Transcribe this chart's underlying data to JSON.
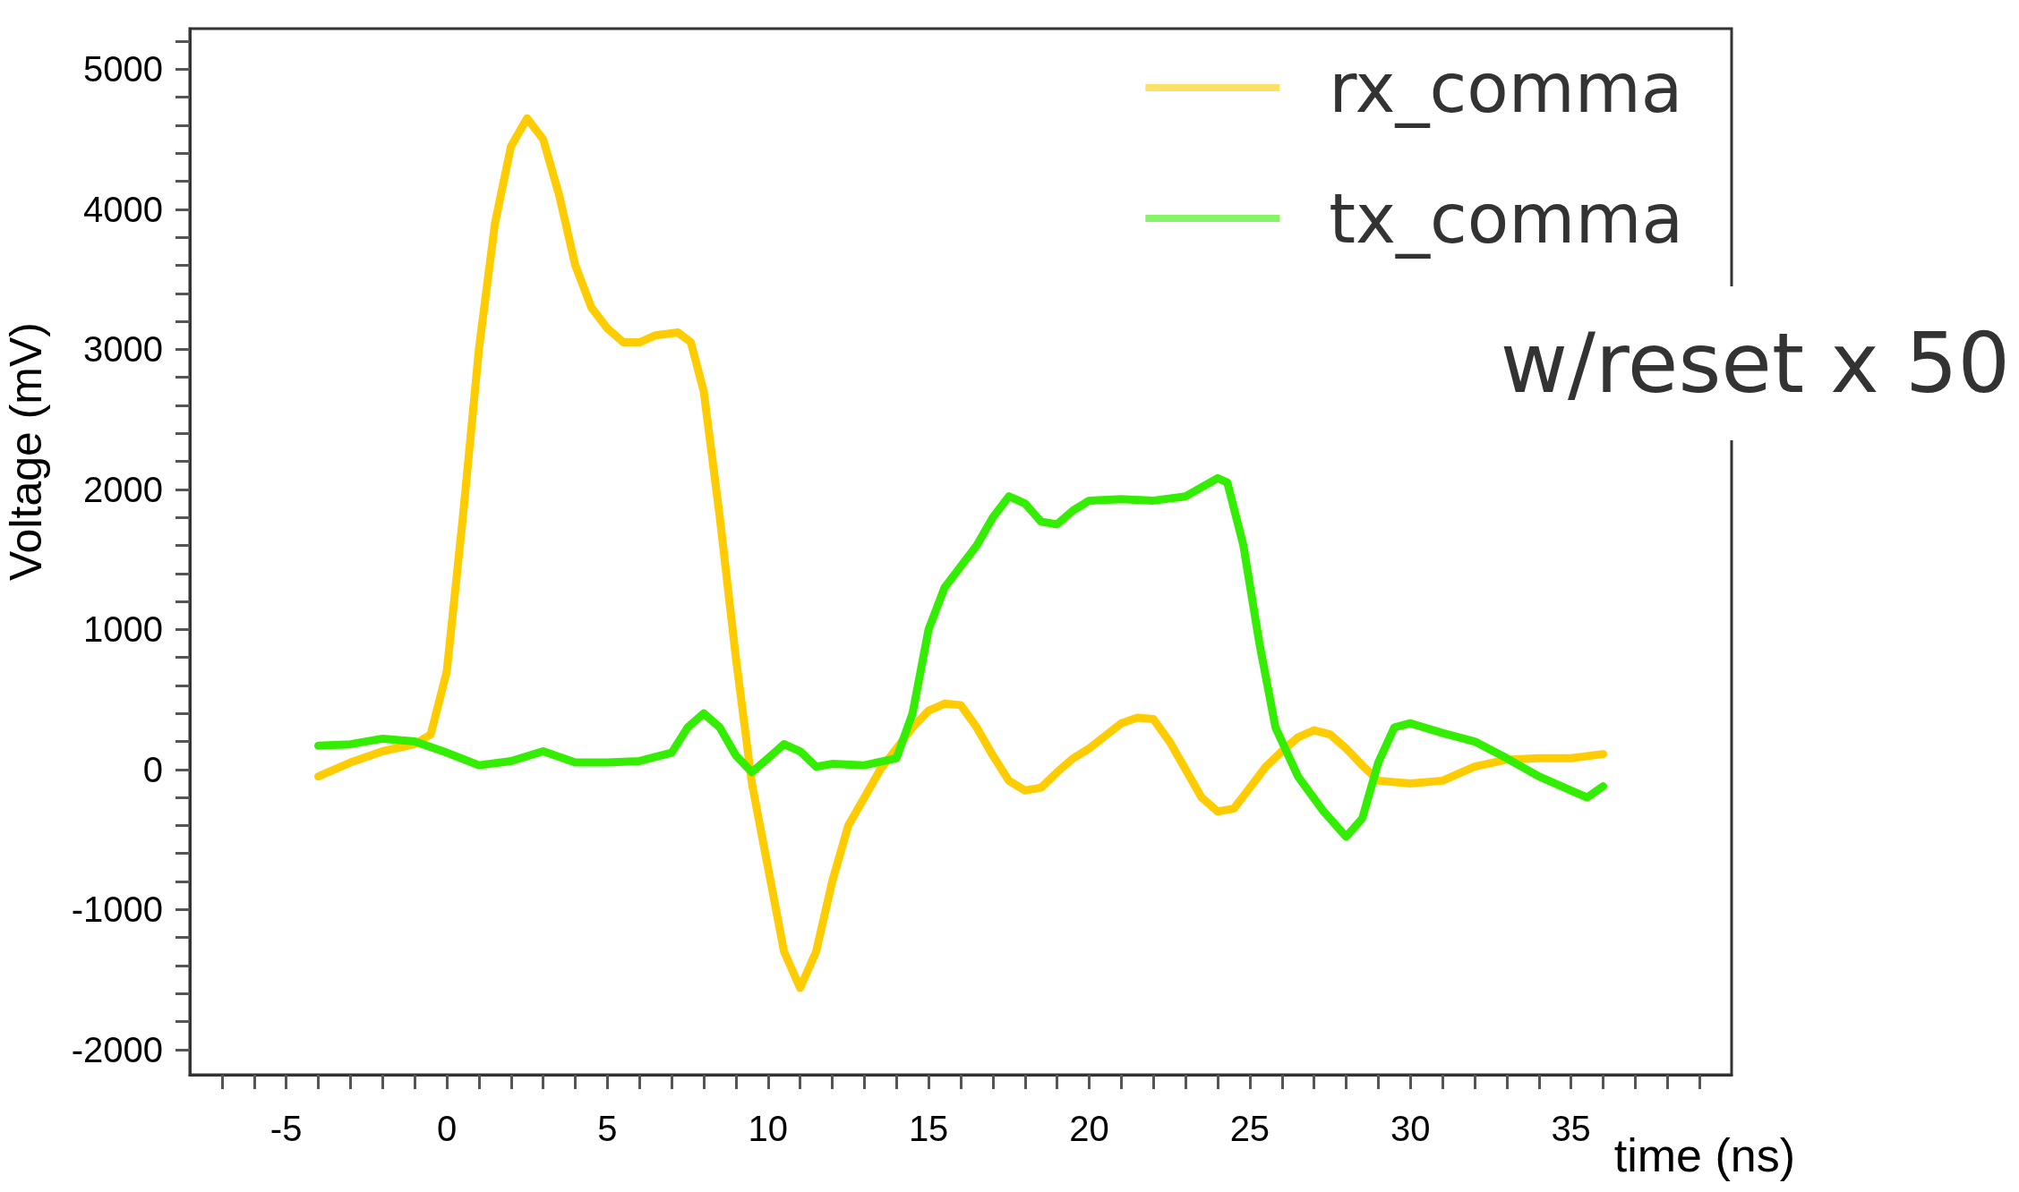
{
  "chart_data": {
    "type": "line",
    "xlabel": "time (ns)",
    "ylabel": "Voltage (mV)",
    "xlim": [
      -8,
      40
    ],
    "ylim": [
      -2180,
      5290
    ],
    "xticks": [
      {
        "value": -7,
        "label": null
      },
      {
        "value": -6,
        "label": null
      },
      -5,
      {
        "value": -4,
        "label": null
      },
      {
        "value": -3,
        "label": null
      },
      {
        "value": -2,
        "label": null
      },
      {
        "value": -1,
        "label": null
      },
      0,
      {
        "value": 1,
        "label": null
      },
      {
        "value": 2,
        "label": null
      },
      {
        "value": 3,
        "label": null
      },
      {
        "value": 4,
        "label": null
      },
      5,
      {
        "value": 6,
        "label": null
      },
      {
        "value": 7,
        "label": null
      },
      {
        "value": 8,
        "label": null
      },
      {
        "value": 9,
        "label": null
      },
      10,
      {
        "value": 11,
        "label": null
      },
      {
        "value": 12,
        "label": null
      },
      {
        "value": 13,
        "label": null
      },
      {
        "value": 14,
        "label": null
      },
      15,
      {
        "value": 16,
        "label": null
      },
      {
        "value": 17,
        "label": null
      },
      {
        "value": 18,
        "label": null
      },
      {
        "value": 19,
        "label": null
      },
      20,
      {
        "value": 21,
        "label": null
      },
      {
        "value": 22,
        "label": null
      },
      {
        "value": 23,
        "label": null
      },
      {
        "value": 24,
        "label": null
      },
      25,
      {
        "value": 26,
        "label": null
      },
      {
        "value": 27,
        "label": null
      },
      {
        "value": 28,
        "label": null
      },
      {
        "value": 29,
        "label": null
      },
      30,
      {
        "value": 31,
        "label": null
      },
      {
        "value": 32,
        "label": null
      },
      {
        "value": 33,
        "label": null
      },
      {
        "value": 34,
        "label": null
      },
      35,
      {
        "value": 36,
        "label": null
      },
      {
        "value": 37,
        "label": null
      },
      {
        "value": 38,
        "label": null
      },
      {
        "value": 39,
        "label": null
      }
    ],
    "yticks": [
      -2000,
      {
        "value": -1800,
        "label": null
      },
      {
        "value": -1600,
        "label": null
      },
      {
        "value": -1400,
        "label": null
      },
      {
        "value": -1200,
        "label": null
      },
      -1000,
      {
        "value": -800,
        "label": null
      },
      {
        "value": -600,
        "label": null
      },
      {
        "value": -400,
        "label": null
      },
      {
        "value": -200,
        "label": null
      },
      0,
      {
        "value": 200,
        "label": null
      },
      {
        "value": 400,
        "label": null
      },
      {
        "value": 600,
        "label": null
      },
      {
        "value": 800,
        "label": null
      },
      1000,
      {
        "value": 1200,
        "label": null
      },
      {
        "value": 1400,
        "label": null
      },
      {
        "value": 1600,
        "label": null
      },
      {
        "value": 1800,
        "label": null
      },
      2000,
      {
        "value": 2200,
        "label": null
      },
      {
        "value": 2400,
        "label": null
      },
      {
        "value": 2600,
        "label": null
      },
      {
        "value": 2800,
        "label": null
      },
      3000,
      {
        "value": 3200,
        "label": null
      },
      {
        "value": 3400,
        "label": null
      },
      {
        "value": 3600,
        "label": null
      },
      {
        "value": 3800,
        "label": null
      },
      4000,
      {
        "value": 4200,
        "label": null
      },
      {
        "value": 4400,
        "label": null
      },
      {
        "value": 4600,
        "label": null
      },
      {
        "value": 4800,
        "label": null
      },
      5000,
      {
        "value": 5200,
        "label": null
      }
    ],
    "grid": false,
    "legend": "top right",
    "marker": "none",
    "line_style": "solid",
    "annotations": [
      "w/reset x 50"
    ],
    "series": [
      {
        "name": "rx_comma",
        "color": "#ffcc00",
        "x": [
          -4,
          -3,
          -2,
          -1,
          -0.5,
          0,
          0.5,
          1,
          1.5,
          2,
          2.5,
          3,
          3.5,
          4,
          4.5,
          5,
          5.5,
          6,
          6.5,
          7.2,
          7.6,
          8,
          8.5,
          9,
          9.5,
          10,
          10.5,
          11,
          11.5,
          12,
          12.5,
          13,
          13.5,
          14,
          14.5,
          15,
          15.5,
          16,
          16.5,
          17,
          17.5,
          18,
          18.5,
          19,
          19.5,
          20,
          20.5,
          21,
          21.5,
          22,
          22.5,
          23,
          23.5,
          24,
          24.5,
          25,
          25.5,
          26,
          26.5,
          27,
          27.5,
          28,
          28.5,
          29,
          30,
          31,
          32,
          33,
          34,
          35,
          36
        ],
        "values": [
          -50,
          50,
          130,
          180,
          250,
          700,
          1800,
          3000,
          3900,
          4450,
          4650,
          4500,
          4100,
          3600,
          3300,
          3150,
          3050,
          3050,
          3100,
          3120,
          3050,
          2700,
          1800,
          800,
          -100,
          -700,
          -1300,
          -1560,
          -1300,
          -800,
          -400,
          -200,
          0,
          150,
          300,
          420,
          470,
          460,
          300,
          100,
          -80,
          -150,
          -130,
          -20,
          80,
          150,
          240,
          330,
          370,
          360,
          200,
          0,
          -200,
          -300,
          -280,
          -130,
          20,
          130,
          230,
          280,
          250,
          150,
          30,
          -80,
          -100,
          -80,
          20,
          70,
          80,
          80,
          110
        ]
      },
      {
        "name": "tx_comma",
        "color": "#33ee00",
        "x": [
          -4,
          -3,
          -2,
          -1,
          0,
          1,
          2,
          3,
          4,
          5,
          6,
          7,
          7.5,
          8,
          8.5,
          9,
          9.5,
          10,
          10.5,
          11,
          11.5,
          12,
          13,
          14,
          14.5,
          15,
          15.5,
          16,
          16.5,
          17,
          17.5,
          18,
          18.5,
          19,
          19.5,
          20,
          21,
          22,
          23,
          24,
          24.3,
          24.8,
          25.3,
          25.8,
          26.5,
          27.3,
          28,
          28.5,
          29,
          29.5,
          30,
          31,
          32,
          33,
          34,
          35,
          35.5,
          36
        ],
        "values": [
          170,
          180,
          220,
          200,
          120,
          30,
          60,
          130,
          50,
          50,
          60,
          120,
          300,
          400,
          300,
          100,
          -20,
          80,
          180,
          130,
          20,
          40,
          30,
          80,
          400,
          1000,
          1300,
          1450,
          1600,
          1800,
          1950,
          1900,
          1770,
          1750,
          1850,
          1920,
          1930,
          1920,
          1950,
          2080,
          2050,
          1600,
          900,
          300,
          -50,
          -300,
          -480,
          -350,
          50,
          300,
          330,
          260,
          200,
          80,
          -50,
          -150,
          -200,
          -120
        ]
      }
    ]
  }
}
